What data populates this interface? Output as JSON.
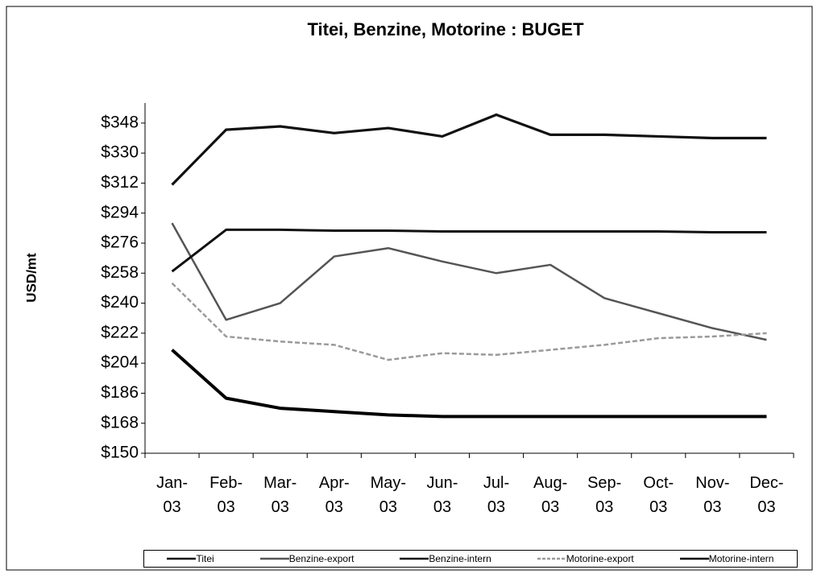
{
  "chart_data": {
    "type": "line",
    "title": "Titei, Benzine, Motorine : BUGET",
    "y_label": "USD/mt",
    "categories": [
      "Jan-03",
      "Feb-03",
      "Mar-03",
      "Apr-03",
      "May-03",
      "Jun-03",
      "Jul-03",
      "Aug-03",
      "Sep-03",
      "Oct-03",
      "Nov-03",
      "Dec-03"
    ],
    "series": [
      {
        "name": "Titei",
        "color": "#111111",
        "values": [
          311,
          344,
          346,
          342,
          345,
          340,
          353,
          341,
          341,
          340,
          339,
          339
        ]
      },
      {
        "name": "Benzine-export",
        "color": "#555555",
        "values": [
          288,
          230,
          240,
          268,
          273,
          265,
          258,
          263,
          243,
          234,
          225,
          218
        ]
      },
      {
        "name": "Benzine-intern",
        "color": "#111111",
        "values": [
          259,
          284,
          284,
          283.5,
          283.5,
          283,
          283,
          283,
          283,
          283,
          282.5,
          282.5
        ]
      },
      {
        "name": "Motorine-export",
        "color": "#9a9a9a",
        "dashed": true,
        "values": [
          252,
          220,
          217,
          215,
          206,
          210,
          209,
          212,
          215,
          219,
          220,
          222
        ]
      },
      {
        "name": "Motorine-intern",
        "color": "#000000",
        "values": [
          212,
          183,
          177,
          175,
          173,
          172,
          172,
          172,
          172,
          172,
          172,
          172
        ]
      }
    ],
    "ylim": [
      150,
      360
    ],
    "yticks": [
      {
        "value": 150,
        "label": "$150"
      },
      {
        "value": 168,
        "label": "$168"
      },
      {
        "value": 186,
        "label": "$186"
      },
      {
        "value": 204,
        "label": "$204"
      },
      {
        "value": 222,
        "label": "$222"
      },
      {
        "value": 240,
        "label": "$240"
      },
      {
        "value": 258,
        "label": "$258"
      },
      {
        "value": 276,
        "label": "$276"
      },
      {
        "value": 294,
        "label": "$294"
      },
      {
        "value": 312,
        "label": "$312"
      },
      {
        "value": 330,
        "label": "$330"
      },
      {
        "value": 348,
        "label": "$348"
      }
    ],
    "grid": false,
    "legend": "bottom"
  }
}
